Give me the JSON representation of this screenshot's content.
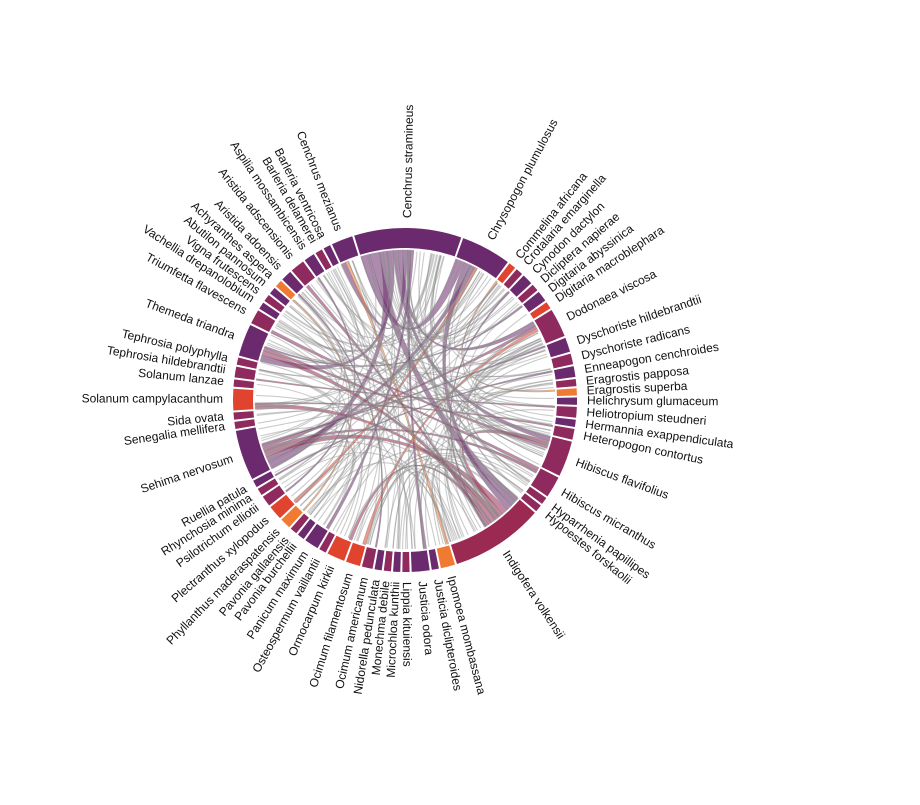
{
  "chart_data": {
    "type": "chord",
    "groups": [
      {
        "name": "Cenchrus stramineus",
        "value": 30,
        "color": "#6b2a6e"
      },
      {
        "name": "Chrysopogon plumulosus",
        "value": 14,
        "color": "#6b2a6e"
      },
      {
        "name": "Commelina africana",
        "value": 2,
        "color": "#e0432e"
      },
      {
        "name": "Crotalaria emarginella",
        "value": 2,
        "color": "#8e2a5e"
      },
      {
        "name": "Cynodon dactylon",
        "value": 3,
        "color": "#6b2a6e"
      },
      {
        "name": "Dicliptera napierae",
        "value": 2,
        "color": "#8e2a5e"
      },
      {
        "name": "Digitaria abyssinica",
        "value": 3,
        "color": "#6b2a6e"
      },
      {
        "name": "Digitaria macroblephara",
        "value": 2,
        "color": "#e0432e"
      },
      {
        "name": "Dodonaea viscosa",
        "value": 8,
        "color": "#8e2a5e"
      },
      {
        "name": "Dyschoriste hildebrandtii",
        "value": 4,
        "color": "#6b2a6e"
      },
      {
        "name": "Dyschoriste radicans",
        "value": 3,
        "color": "#8e2a5e"
      },
      {
        "name": "Enneapogon cenchroides",
        "value": 3,
        "color": "#6b2a6e"
      },
      {
        "name": "Eragrostis papposa",
        "value": 2,
        "color": "#8e2a5e"
      },
      {
        "name": "Eragrostis superba",
        "value": 2,
        "color": "#f07a32"
      },
      {
        "name": "Helichrysum glumaceum",
        "value": 2,
        "color": "#6b2a6e"
      },
      {
        "name": "Heliotropium steudneri",
        "value": 3,
        "color": "#8e2a5e"
      },
      {
        "name": "Hermannia exappendiculata",
        "value": 2,
        "color": "#6b2a6e"
      },
      {
        "name": "Heteropogon contortus",
        "value": 3,
        "color": "#8e2a5e"
      },
      {
        "name": "Hibiscus flavifolius",
        "value": 10,
        "color": "#8e2a5e"
      },
      {
        "name": "Hibiscus micranthus",
        "value": 6,
        "color": "#8e2a5e"
      },
      {
        "name": "Hyparrhenia papillipes",
        "value": 2,
        "color": "#8e2a5e"
      },
      {
        "name": "Hypoestes forskaolii",
        "value": 2,
        "color": "#8e2a5e"
      },
      {
        "name": "Indigofera volkensii",
        "value": 26,
        "color": "#9a2a52"
      },
      {
        "name": "Ipomoea mombassana",
        "value": 4,
        "color": "#f07a32"
      },
      {
        "name": "Justicia diclipteroides",
        "value": 2,
        "color": "#6b2a6e"
      },
      {
        "name": "Justicia odora",
        "value": 5,
        "color": "#6b2a6e"
      },
      {
        "name": "Lippia kituiensis",
        "value": 2,
        "color": "#8e2a5e"
      },
      {
        "name": "Microchloa kunthii",
        "value": 2,
        "color": "#6b2a6e"
      },
      {
        "name": "Monechma debile",
        "value": 2,
        "color": "#8e2a5e"
      },
      {
        "name": "Nidorella pedunculata",
        "value": 2,
        "color": "#6b2a6e"
      },
      {
        "name": "Ocimum americanum",
        "value": 3,
        "color": "#8e2a5e"
      },
      {
        "name": "Ocimum filamentosum",
        "value": 4,
        "color": "#e0432e"
      },
      {
        "name": "Ormocarpum kirkii",
        "value": 5,
        "color": "#e0432e"
      },
      {
        "name": "Osteospermum vaillantii",
        "value": 2,
        "color": "#8e2a5e"
      },
      {
        "name": "Panicum maximum",
        "value": 4,
        "color": "#6b2a6e"
      },
      {
        "name": "Pavonia burchellii",
        "value": 2,
        "color": "#6b2a6e"
      },
      {
        "name": "Pavonia gallaensis",
        "value": 2,
        "color": "#8e2a5e"
      },
      {
        "name": "Phyllanthus maderaspatensis",
        "value": 3,
        "color": "#f07a32"
      },
      {
        "name": "Plectranthus xylopodus",
        "value": 4,
        "color": "#e0432e"
      },
      {
        "name": "Psilotrichum elliotii",
        "value": 3,
        "color": "#8e2a5e"
      },
      {
        "name": "Rhynchosia minima",
        "value": 2,
        "color": "#8e2a5e"
      },
      {
        "name": "Ruellia patula",
        "value": 2,
        "color": "#6b2a6e"
      },
      {
        "name": "Sehima nervosum",
        "value": 14,
        "color": "#6b2a6e"
      },
      {
        "name": "Senegalia mellifera",
        "value": 2,
        "color": "#8e2a5e"
      },
      {
        "name": "Sida ovata",
        "value": 2,
        "color": "#8e2a5e"
      },
      {
        "name": "Solanum campylacanthum",
        "value": 6,
        "color": "#e0432e"
      },
      {
        "name": "Solanum lanzae",
        "value": 2,
        "color": "#8e2a5e"
      },
      {
        "name": "Tephrosia hildebrandtii",
        "value": 3,
        "color": "#8e2a5e"
      },
      {
        "name": "Tephrosia polyphylla",
        "value": 2,
        "color": "#8e2a5e"
      },
      {
        "name": "Themeda triandra",
        "value": 9,
        "color": "#6b2a6e"
      },
      {
        "name": "Triumfetta flavescens",
        "value": 4,
        "color": "#8e2a5e"
      },
      {
        "name": "Vachellia drepanolobium",
        "value": 2,
        "color": "#6b2a6e"
      },
      {
        "name": "Vigna frutescens",
        "value": 2,
        "color": "#8e2a5e"
      },
      {
        "name": "Abutilon pannosum",
        "value": 2,
        "color": "#6b2a6e"
      },
      {
        "name": "Achyranthes aspera",
        "value": 2,
        "color": "#f07a32"
      },
      {
        "name": "Aristida adoensis",
        "value": 3,
        "color": "#6b2a6e"
      },
      {
        "name": "Aristida adscensionis",
        "value": 4,
        "color": "#8e2a5e"
      },
      {
        "name": "Aspilia mossambicensis",
        "value": 3,
        "color": "#6b2a6e"
      },
      {
        "name": "Barleria delamerei",
        "value": 2,
        "color": "#8e2a5e"
      },
      {
        "name": "Barleria ventricosa",
        "value": 2,
        "color": "#6b2a6e"
      },
      {
        "name": "Cenchrus mezianus",
        "value": 6,
        "color": "#6b2a6e"
      }
    ],
    "ribbons": [
      {
        "source": "Cenchrus stramineus",
        "target": "Chrysopogon plumulosus",
        "value": 6
      },
      {
        "source": "Cenchrus stramineus",
        "target": "Indigofera volkensii",
        "value": 6
      },
      {
        "source": "Cenchrus stramineus",
        "target": "Sehima nervosum",
        "value": 5
      },
      {
        "source": "Cenchrus stramineus",
        "target": "Themeda triandra",
        "value": 4
      },
      {
        "source": "Cenchrus stramineus",
        "target": "Hibiscus flavifolius",
        "value": 3
      },
      {
        "source": "Cenchrus stramineus",
        "target": "Dodonaea viscosa",
        "value": 3
      },
      {
        "source": "Cenchrus stramineus",
        "target": "Cenchrus mezianus",
        "value": 3
      },
      {
        "source": "Chrysopogon plumulosus",
        "target": "Indigofera volkensii",
        "value": 4
      },
      {
        "source": "Chrysopogon plumulosus",
        "target": "Sehima nervosum",
        "value": 3
      },
      {
        "source": "Indigofera volkensii",
        "target": "Sehima nervosum",
        "value": 4
      },
      {
        "source": "Indigofera volkensii",
        "target": "Hibiscus flavifolius",
        "value": 3
      },
      {
        "source": "Indigofera volkensii",
        "target": "Solanum campylacanthum",
        "value": 3
      },
      {
        "source": "Indigofera volkensii",
        "target": "Themeda triandra",
        "value": 3
      },
      {
        "source": "Indigofera volkensii",
        "target": "Ormocarpum kirkii",
        "value": 2
      },
      {
        "source": "Hibiscus micranthus",
        "target": "Themeda triandra",
        "value": 2
      },
      {
        "source": "Hibiscus micranthus",
        "target": "Sehima nervosum",
        "value": 2
      },
      {
        "source": "Dodonaea viscosa",
        "target": "Sehima nervosum",
        "value": 2
      },
      {
        "source": "Justicia odora",
        "target": "Cenchrus stramineus",
        "value": 2
      },
      {
        "source": "Panicum maximum",
        "target": "Cenchrus stramineus",
        "value": 2
      },
      {
        "source": "Plectranthus xylopodus",
        "target": "Chrysopogon plumulosus",
        "value": 2
      },
      {
        "source": "Ocimum filamentosum",
        "target": "Dodonaea viscosa",
        "value": 2
      },
      {
        "source": "Ipomoea mombassana",
        "target": "Cenchrus mezianus",
        "value": 2
      },
      {
        "source": "Triumfetta flavescens",
        "target": "Hibiscus flavifolius",
        "value": 2
      },
      {
        "source": "Aristida adscensionis",
        "target": "Indigofera volkensii",
        "value": 2
      },
      {
        "source": "Heteropogon contortus",
        "target": "Solanum campylacanthum",
        "value": 1
      },
      {
        "source": "Dyschoriste hildebrandtii",
        "target": "Sehima nervosum",
        "value": 1
      },
      {
        "source": "Digitaria abyssinica",
        "target": "Themeda triandra",
        "value": 1
      },
      {
        "source": "Cynodon dactylon",
        "target": "Indigofera volkensii",
        "value": 1
      },
      {
        "source": "Enneapogon cenchroides",
        "target": "Ruellia patula",
        "value": 1
      },
      {
        "source": "Heliotropium steudneri",
        "target": "Tephrosia hildebrandtii",
        "value": 1
      },
      {
        "source": "Aristida adoensis",
        "target": "Ocimum americanum",
        "value": 1
      },
      {
        "source": "Aspilia mossambicensis",
        "target": "Psilotrichum elliotii",
        "value": 1
      },
      {
        "source": "Phyllanthus maderaspatensis",
        "target": "Achyranthes aspera",
        "value": 1
      },
      {
        "source": "Eragrostis superba",
        "target": "Commelina africana",
        "value": 1
      }
    ]
  }
}
